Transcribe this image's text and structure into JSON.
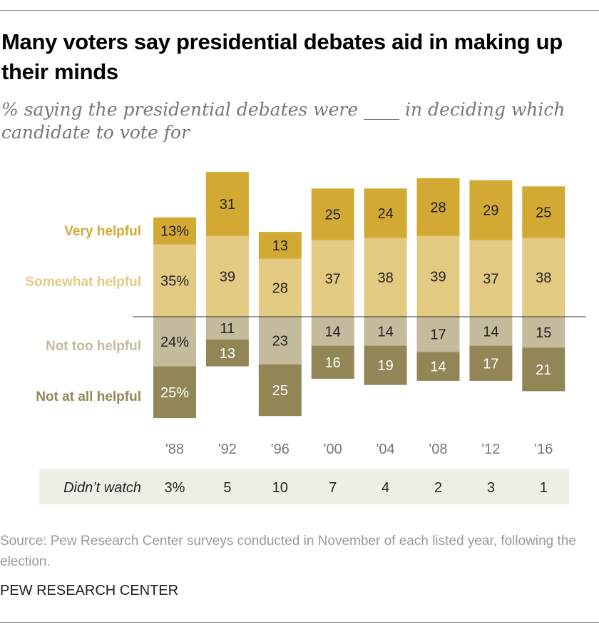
{
  "title": "Many voters say presidential debates aid in making up their minds",
  "subtitle": "% saying the presidential debates were ____  in deciding which candidate to vote for",
  "chart_data": {
    "type": "bar",
    "stacked": "diverging",
    "categories": [
      "'88",
      "'92",
      "'96",
      "'00",
      "'04",
      "'08",
      "'12",
      "'16"
    ],
    "series": [
      {
        "name": "Very helpful",
        "color": "#d1a933",
        "values": [
          13,
          31,
          13,
          25,
          24,
          28,
          29,
          25
        ]
      },
      {
        "name": "Somewhat helpful",
        "color": "#e3ca83",
        "values": [
          35,
          39,
          28,
          37,
          38,
          39,
          37,
          38
        ]
      },
      {
        "name": "Not too helpful",
        "color": "#c4ba9c",
        "values": [
          24,
          11,
          23,
          14,
          14,
          17,
          14,
          15
        ]
      },
      {
        "name": "Not at all helpful",
        "color": "#938656",
        "values": [
          25,
          13,
          25,
          16,
          19,
          14,
          17,
          21
        ]
      }
    ],
    "first_column_suffix": "%",
    "legend_placement": "left",
    "table": {
      "label": "Didn’t watch",
      "values": [
        "3%",
        "5",
        "10",
        "7",
        "4",
        "2",
        "3",
        "1"
      ]
    }
  },
  "source": "Source: Pew Research Center surveys conducted in November of each listed year, following the election.",
  "brand": "PEW RESEARCH CENTER"
}
